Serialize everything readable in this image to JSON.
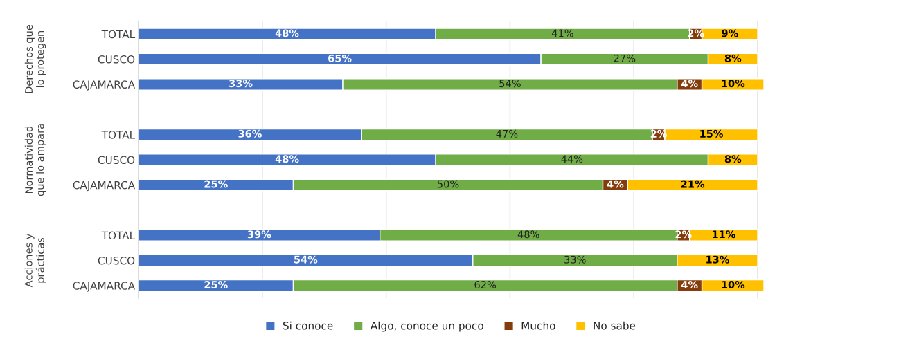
{
  "chart_data": {
    "type": "bar",
    "orientation": "horizontal",
    "stacked": true,
    "categories": [
      "TOTAL",
      "CUSCO",
      "CAJAMARCA",
      null,
      "TOTAL",
      "CUSCO",
      "CAJAMARCA",
      null,
      "TOTAL",
      "CUSCO",
      "CAJAMARCA"
    ],
    "series": [
      {
        "name": "Si conoce",
        "color": "#4472c4",
        "values": [
          48,
          65,
          33,
          null,
          36,
          48,
          25,
          null,
          39,
          54,
          25
        ],
        "value_labels": [
          "48%",
          "65%",
          "33%",
          null,
          "36%",
          "48%",
          "25%",
          null,
          "39%",
          "54%",
          "25%"
        ]
      },
      {
        "name": "Algo, conoce un poco",
        "color": "#70ad47",
        "values": [
          41,
          27,
          54,
          null,
          47,
          44,
          50,
          null,
          48,
          33,
          62
        ],
        "value_labels": [
          "41%",
          "27%",
          "54%",
          null,
          "47%",
          "44%",
          "50%",
          null,
          "48%",
          "33%",
          "62%"
        ]
      },
      {
        "name": "Mucho",
        "color": "#843c0c",
        "values": [
          2,
          null,
          4,
          null,
          2,
          null,
          4,
          null,
          2,
          null,
          4
        ],
        "value_labels": [
          "2%",
          null,
          "4%",
          null,
          "2%",
          null,
          "4%",
          null,
          "2%",
          null,
          "4%"
        ]
      },
      {
        "name": "No sabe",
        "color": "#ffc000",
        "values": [
          9,
          8,
          10,
          null,
          15,
          8,
          21,
          null,
          11,
          13,
          10
        ],
        "value_labels": [
          "9%",
          "8%",
          "10%",
          null,
          "15%",
          "8%",
          "21%",
          null,
          "11%",
          "13%",
          "10%"
        ]
      }
    ],
    "annotations": [
      "Derechos que lo protegen",
      "Normatividad que lo ampara",
      "Acciones y prácticas"
    ],
    "xlim": [
      0,
      101
    ],
    "xticks": [
      {
        "value": 0,
        "label": null
      },
      {
        "value": 20,
        "label": null
      },
      {
        "value": 40,
        "label": null
      },
      {
        "value": 60,
        "label": null
      },
      {
        "value": 80,
        "label": null
      },
      {
        "value": 100,
        "label": null
      }
    ],
    "tick_labels": "y",
    "grid": "x",
    "legend": "bottom"
  }
}
